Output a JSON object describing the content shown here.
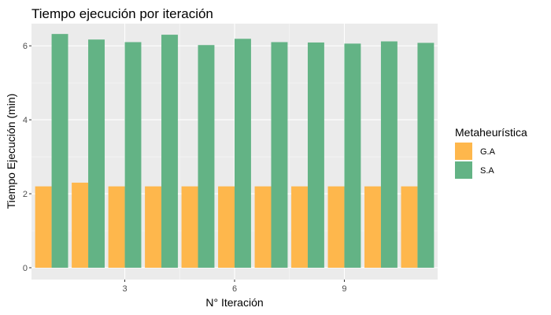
{
  "chart_data": {
    "type": "bar",
    "title": "Tiempo ejecución por iteración",
    "xlabel": "N° Iteración",
    "ylabel": "Tiempo Ejecución (min)",
    "x": [
      1,
      2,
      3,
      4,
      5,
      6,
      7,
      8,
      9,
      10,
      11
    ],
    "xlim": [
      0.45,
      11.55
    ],
    "x_ticks": [
      3,
      6,
      9
    ],
    "ylim": [
      -0.32,
      6.6
    ],
    "y_ticks": [
      0,
      2,
      4,
      6
    ],
    "grid": true,
    "panel_background": "#ebebeb",
    "legend_position": "right",
    "legend_title": "Metaheurística",
    "series": [
      {
        "name": "G.A",
        "color": "#feb74c",
        "values": [
          2.2,
          2.3,
          2.2,
          2.2,
          2.2,
          2.2,
          2.2,
          2.2,
          2.2,
          2.2,
          2.2
        ]
      },
      {
        "name": "S.A",
        "color": "#63b385",
        "values": [
          6.32,
          6.17,
          6.1,
          6.3,
          6.02,
          6.19,
          6.1,
          6.09,
          6.06,
          6.12,
          6.08
        ]
      }
    ]
  }
}
